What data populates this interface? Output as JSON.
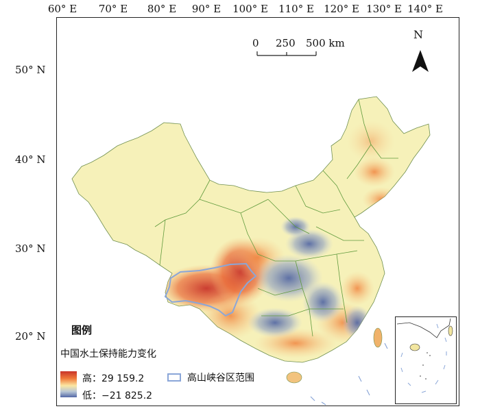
{
  "axes": {
    "longitudes": [
      "60° E",
      "70° E",
      "80° E",
      "90° E",
      "100° E",
      "110° E",
      "120° E",
      "130° E",
      "140° E"
    ],
    "latitudes": [
      "50° N",
      "40° N",
      "30° N",
      "20° N"
    ]
  },
  "scale_bar": {
    "labels": [
      "0",
      "250",
      "500 km"
    ]
  },
  "north_arrow": {
    "label": "N"
  },
  "legend": {
    "title": "图例",
    "subtitle": "中国水土保持能力变化",
    "high_label": "高：29 159.2",
    "low_label": "低：−21 825.2",
    "boundary_label": "高山峡谷区范围"
  },
  "colors": {
    "high": "#c8342a",
    "mid": "#fbe7a2",
    "low": "#5267a6",
    "background_land": "#f6f1b9",
    "boundary": "#8aa6d8",
    "province_lines": "#5f9a3c"
  }
}
